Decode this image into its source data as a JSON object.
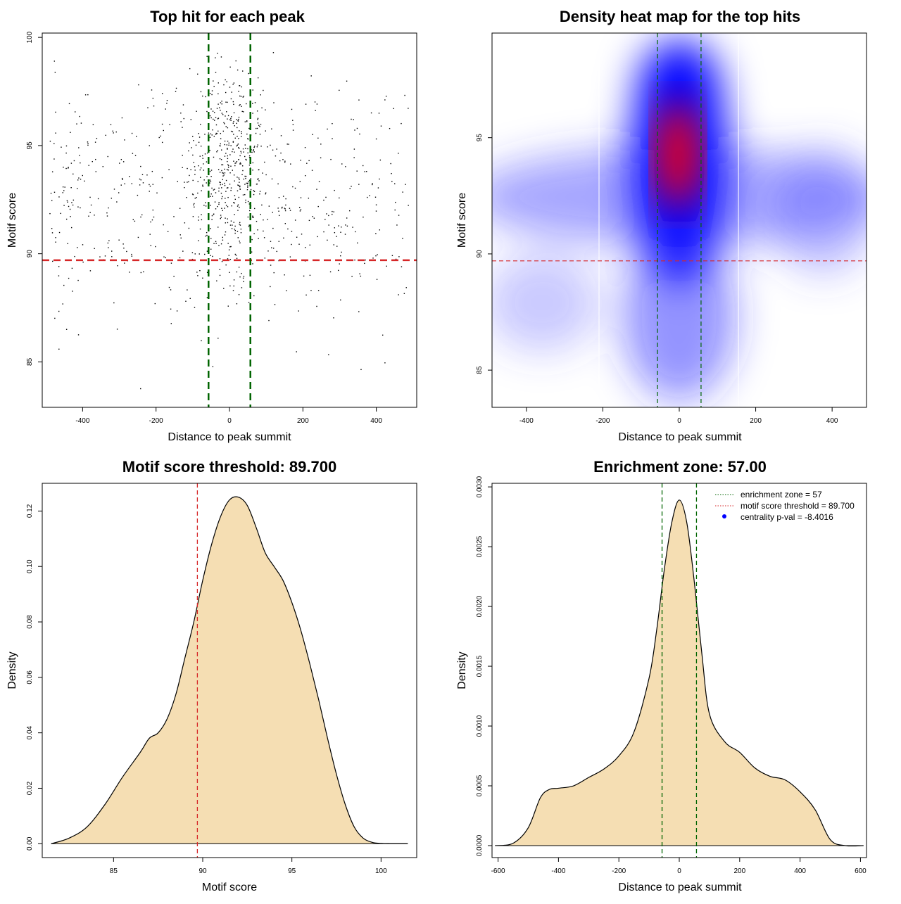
{
  "colors": {
    "points": "#000000",
    "threshold": "#d62728",
    "zone": "#006400",
    "fill": "#f5deb3",
    "heat_low": "#ffffff",
    "heat_mid": "#0000ff",
    "heat_high": "#ff0000",
    "legend_dot": "#0000ff"
  },
  "chart_data": [
    {
      "type": "scatter",
      "title": "Top hit for each peak",
      "xlabel": "Distance to peak summit",
      "ylabel": "Motif score",
      "xlim": [
        -510,
        510
      ],
      "ylim": [
        82.9,
        100.2
      ],
      "xticks": [
        -400,
        -200,
        0,
        200,
        400
      ],
      "yticks": [
        85,
        90,
        95,
        100
      ],
      "xtick_labels": [
        "-400",
        "-200",
        "0",
        "200",
        "400"
      ],
      "ytick_labels": [
        "85",
        "90",
        "95",
        "100"
      ],
      "threshold_y": 89.7,
      "zone_x": [
        -57,
        57
      ],
      "n_points": 1000,
      "points_description_dist": {
        "x_center_sd": 55,
        "x_center_frac": 0.45,
        "y_center_mean": 93,
        "y_spread_sd": 3
      }
    },
    {
      "type": "heatmap",
      "title": "Density heat map for the top hits",
      "xlabel": "Distance to peak summit",
      "ylabel": "Motif score",
      "xlim": [
        -490,
        490
      ],
      "ylim": [
        83.4,
        99.5
      ],
      "xticks": [
        -400,
        -200,
        0,
        200,
        400
      ],
      "yticks": [
        85,
        90,
        95
      ],
      "xtick_labels": [
        "-400",
        "-200",
        "0",
        "200",
        "400"
      ],
      "ytick_labels": [
        "85",
        "90",
        "95"
      ],
      "threshold_y": 89.7,
      "zone_x": [
        -57,
        57
      ],
      "white_lines_x": [
        -210,
        155
      ],
      "peak": {
        "x": 0,
        "y": 93.8
      }
    },
    {
      "type": "area",
      "title": "Motif score threshold: 89.700",
      "xlabel": "Motif score",
      "ylabel": "Density",
      "xlim": [
        81,
        102
      ],
      "ylim": [
        -0.005,
        0.13
      ],
      "xticks": [
        85,
        90,
        95,
        100
      ],
      "yticks": [
        0.0,
        0.02,
        0.04,
        0.06,
        0.08,
        0.1,
        0.12
      ],
      "xtick_labels": [
        "85",
        "90",
        "95",
        "100"
      ],
      "ytick_labels": [
        "0.00",
        "0.02",
        "0.04",
        "0.06",
        "0.08",
        "0.10",
        "0.12"
      ],
      "threshold_x": 89.7,
      "x": [
        81.5,
        82.5,
        83.5,
        84.5,
        85.5,
        86.5,
        87.0,
        87.5,
        88.0,
        88.5,
        89.0,
        89.5,
        90.0,
        90.5,
        91.0,
        91.5,
        92.0,
        92.5,
        93.0,
        93.5,
        94.0,
        94.5,
        95.0,
        95.5,
        96.0,
        96.5,
        97.0,
        97.5,
        98.0,
        98.5,
        99.0,
        99.5,
        100.0,
        100.5,
        101.0,
        101.5
      ],
      "y": [
        0.0,
        0.002,
        0.006,
        0.014,
        0.024,
        0.033,
        0.038,
        0.04,
        0.045,
        0.054,
        0.067,
        0.08,
        0.095,
        0.108,
        0.118,
        0.124,
        0.125,
        0.122,
        0.114,
        0.105,
        0.1,
        0.095,
        0.087,
        0.077,
        0.065,
        0.052,
        0.038,
        0.025,
        0.014,
        0.006,
        0.002,
        0.0005,
        0.0001,
        0.0,
        0.0,
        0.0
      ]
    },
    {
      "type": "area",
      "title": "Enrichment zone: 57.00",
      "xlabel": "Distance to peak summit",
      "ylabel": "Density",
      "xlim": [
        -620,
        620
      ],
      "ylim": [
        -0.0001,
        0.00303
      ],
      "xticks": [
        -600,
        -400,
        -200,
        0,
        200,
        400,
        600
      ],
      "yticks": [
        0.0,
        0.0005,
        0.001,
        0.0015,
        0.002,
        0.0025,
        0.003
      ],
      "xtick_labels": [
        "-600",
        "-400",
        "-200",
        "0",
        "200",
        "400",
        "600"
      ],
      "ytick_labels": [
        "0.0000",
        "0.0005",
        "0.0010",
        "0.0015",
        "0.0020",
        "0.0025",
        "0.0030"
      ],
      "zone_x": [
        -57,
        57
      ],
      "x": [
        -610,
        -550,
        -500,
        -460,
        -430,
        -400,
        -350,
        -300,
        -250,
        -200,
        -150,
        -100,
        -75,
        -50,
        -25,
        0,
        25,
        50,
        75,
        100,
        150,
        200,
        250,
        300,
        350,
        400,
        450,
        500,
        550,
        610
      ],
      "y": [
        0.0,
        2e-05,
        0.00015,
        0.0004,
        0.00047,
        0.00048,
        0.0005,
        0.00057,
        0.00064,
        0.00075,
        0.00095,
        0.0014,
        0.0018,
        0.0023,
        0.0027,
        0.00289,
        0.0027,
        0.0022,
        0.0016,
        0.0011,
        0.00087,
        0.00078,
        0.00065,
        0.00058,
        0.00055,
        0.00045,
        0.0003,
        5e-05,
        0.0,
        0.0
      ],
      "legend": [
        {
          "label": "enrichment zone = 57",
          "style": "dotted",
          "color": "#006400"
        },
        {
          "label": "motif score threshold = 89.700",
          "style": "dotted",
          "color": "#d62728"
        },
        {
          "label": "centrality p-val = -8.4016",
          "style": "dot",
          "color": "#0000ff"
        }
      ],
      "legend_position": "top-right"
    }
  ]
}
